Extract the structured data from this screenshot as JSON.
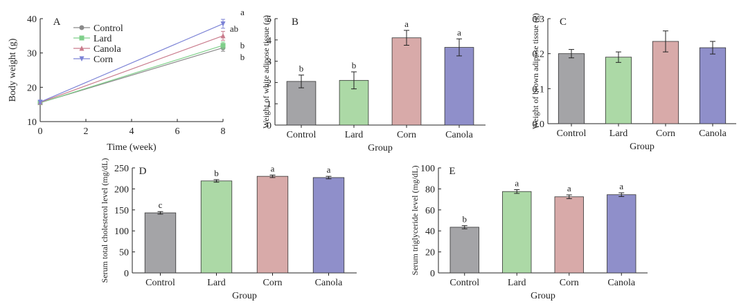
{
  "chart_data": [
    {
      "panel": "A",
      "type": "line",
      "xlabel": "Time (week)",
      "ylabel": "Body weight (g)",
      "xlim": [
        0,
        8
      ],
      "ylim": [
        10,
        40
      ],
      "xticks": [
        "0",
        "2",
        "4",
        "6",
        "8"
      ],
      "yticks": [
        "10",
        "20",
        "30",
        "40"
      ],
      "legend": "top-left",
      "x": [
        0,
        8
      ],
      "series": [
        {
          "name": "Control",
          "values": [
            15.5,
            31.5
          ],
          "err": [
            0.5,
            1.0
          ],
          "sig": "b",
          "color": "#8a8a8a",
          "marker": "circle"
        },
        {
          "name": "Lard",
          "values": [
            15.5,
            32.2
          ],
          "err": [
            0.5,
            1.0
          ],
          "sig": "b",
          "color": "#7fcf8a",
          "marker": "square"
        },
        {
          "name": "Canola",
          "values": [
            15.6,
            35.0
          ],
          "err": [
            0.5,
            1.3
          ],
          "sig": "ab",
          "color": "#c97b8c",
          "marker": "triangle-up"
        },
        {
          "name": "Corn",
          "values": [
            15.7,
            38.5
          ],
          "err": [
            0.5,
            1.3
          ],
          "sig": "a",
          "color": "#7c83d6",
          "marker": "triangle-down"
        }
      ]
    },
    {
      "panel": "B",
      "type": "bar",
      "xlabel": "Group",
      "ylabel": "Weight of white adipose tissue (g)",
      "ylim": [
        0,
        5
      ],
      "yticks": [
        "0",
        "1",
        "2",
        "3",
        "4",
        "5"
      ],
      "categories": [
        "Control",
        "Lard",
        "Corn",
        "Canola"
      ],
      "values": [
        2.05,
        2.1,
        4.1,
        3.65
      ],
      "err": [
        0.3,
        0.4,
        0.35,
        0.4
      ],
      "sig": [
        "b",
        "b",
        "a",
        "a"
      ]
    },
    {
      "panel": "C",
      "type": "bar",
      "xlabel": "Group",
      "ylabel": "Weight of brown adipose tissue (g)",
      "ylim": [
        0,
        0.3
      ],
      "yticks": [
        "0.0",
        "0.1",
        "0.2",
        "0.3"
      ],
      "categories": [
        "Control",
        "Lard",
        "Corn",
        "Canola"
      ],
      "values": [
        0.2,
        0.19,
        0.235,
        0.217
      ],
      "err": [
        0.012,
        0.015,
        0.03,
        0.018
      ],
      "sig": [
        "",
        "",
        "",
        ""
      ]
    },
    {
      "panel": "D",
      "type": "bar",
      "xlabel": "Group",
      "ylabel": "Serum total cholesterol level (mg/dL)",
      "ylim": [
        0,
        250
      ],
      "yticks": [
        "0",
        "50",
        "100",
        "150",
        "200",
        "250"
      ],
      "categories": [
        "Control",
        "Lard",
        "Corn",
        "Canola"
      ],
      "values": [
        143,
        219,
        230,
        227
      ],
      "err": [
        3,
        3,
        3,
        3
      ],
      "sig": [
        "c",
        "b",
        "a",
        "a"
      ]
    },
    {
      "panel": "E",
      "type": "bar",
      "xlabel": "Group",
      "ylabel": "Serum triglyceride level (mg/dL)",
      "ylim": [
        0,
        100
      ],
      "yticks": [
        "0",
        "20",
        "40",
        "60",
        "80",
        "100"
      ],
      "categories": [
        "Control",
        "Lard",
        "Corn",
        "Canola"
      ],
      "values": [
        43.5,
        77.5,
        72.5,
        74.5
      ],
      "err": [
        1.5,
        1.8,
        1.8,
        1.8
      ],
      "sig": [
        "b",
        "a",
        "a",
        "a"
      ]
    }
  ],
  "colors": {
    "axis": "#222222",
    "bars": [
      "#a4a4a7",
      "#acd9a6",
      "#d8aaa9",
      "#8f8fca"
    ]
  }
}
